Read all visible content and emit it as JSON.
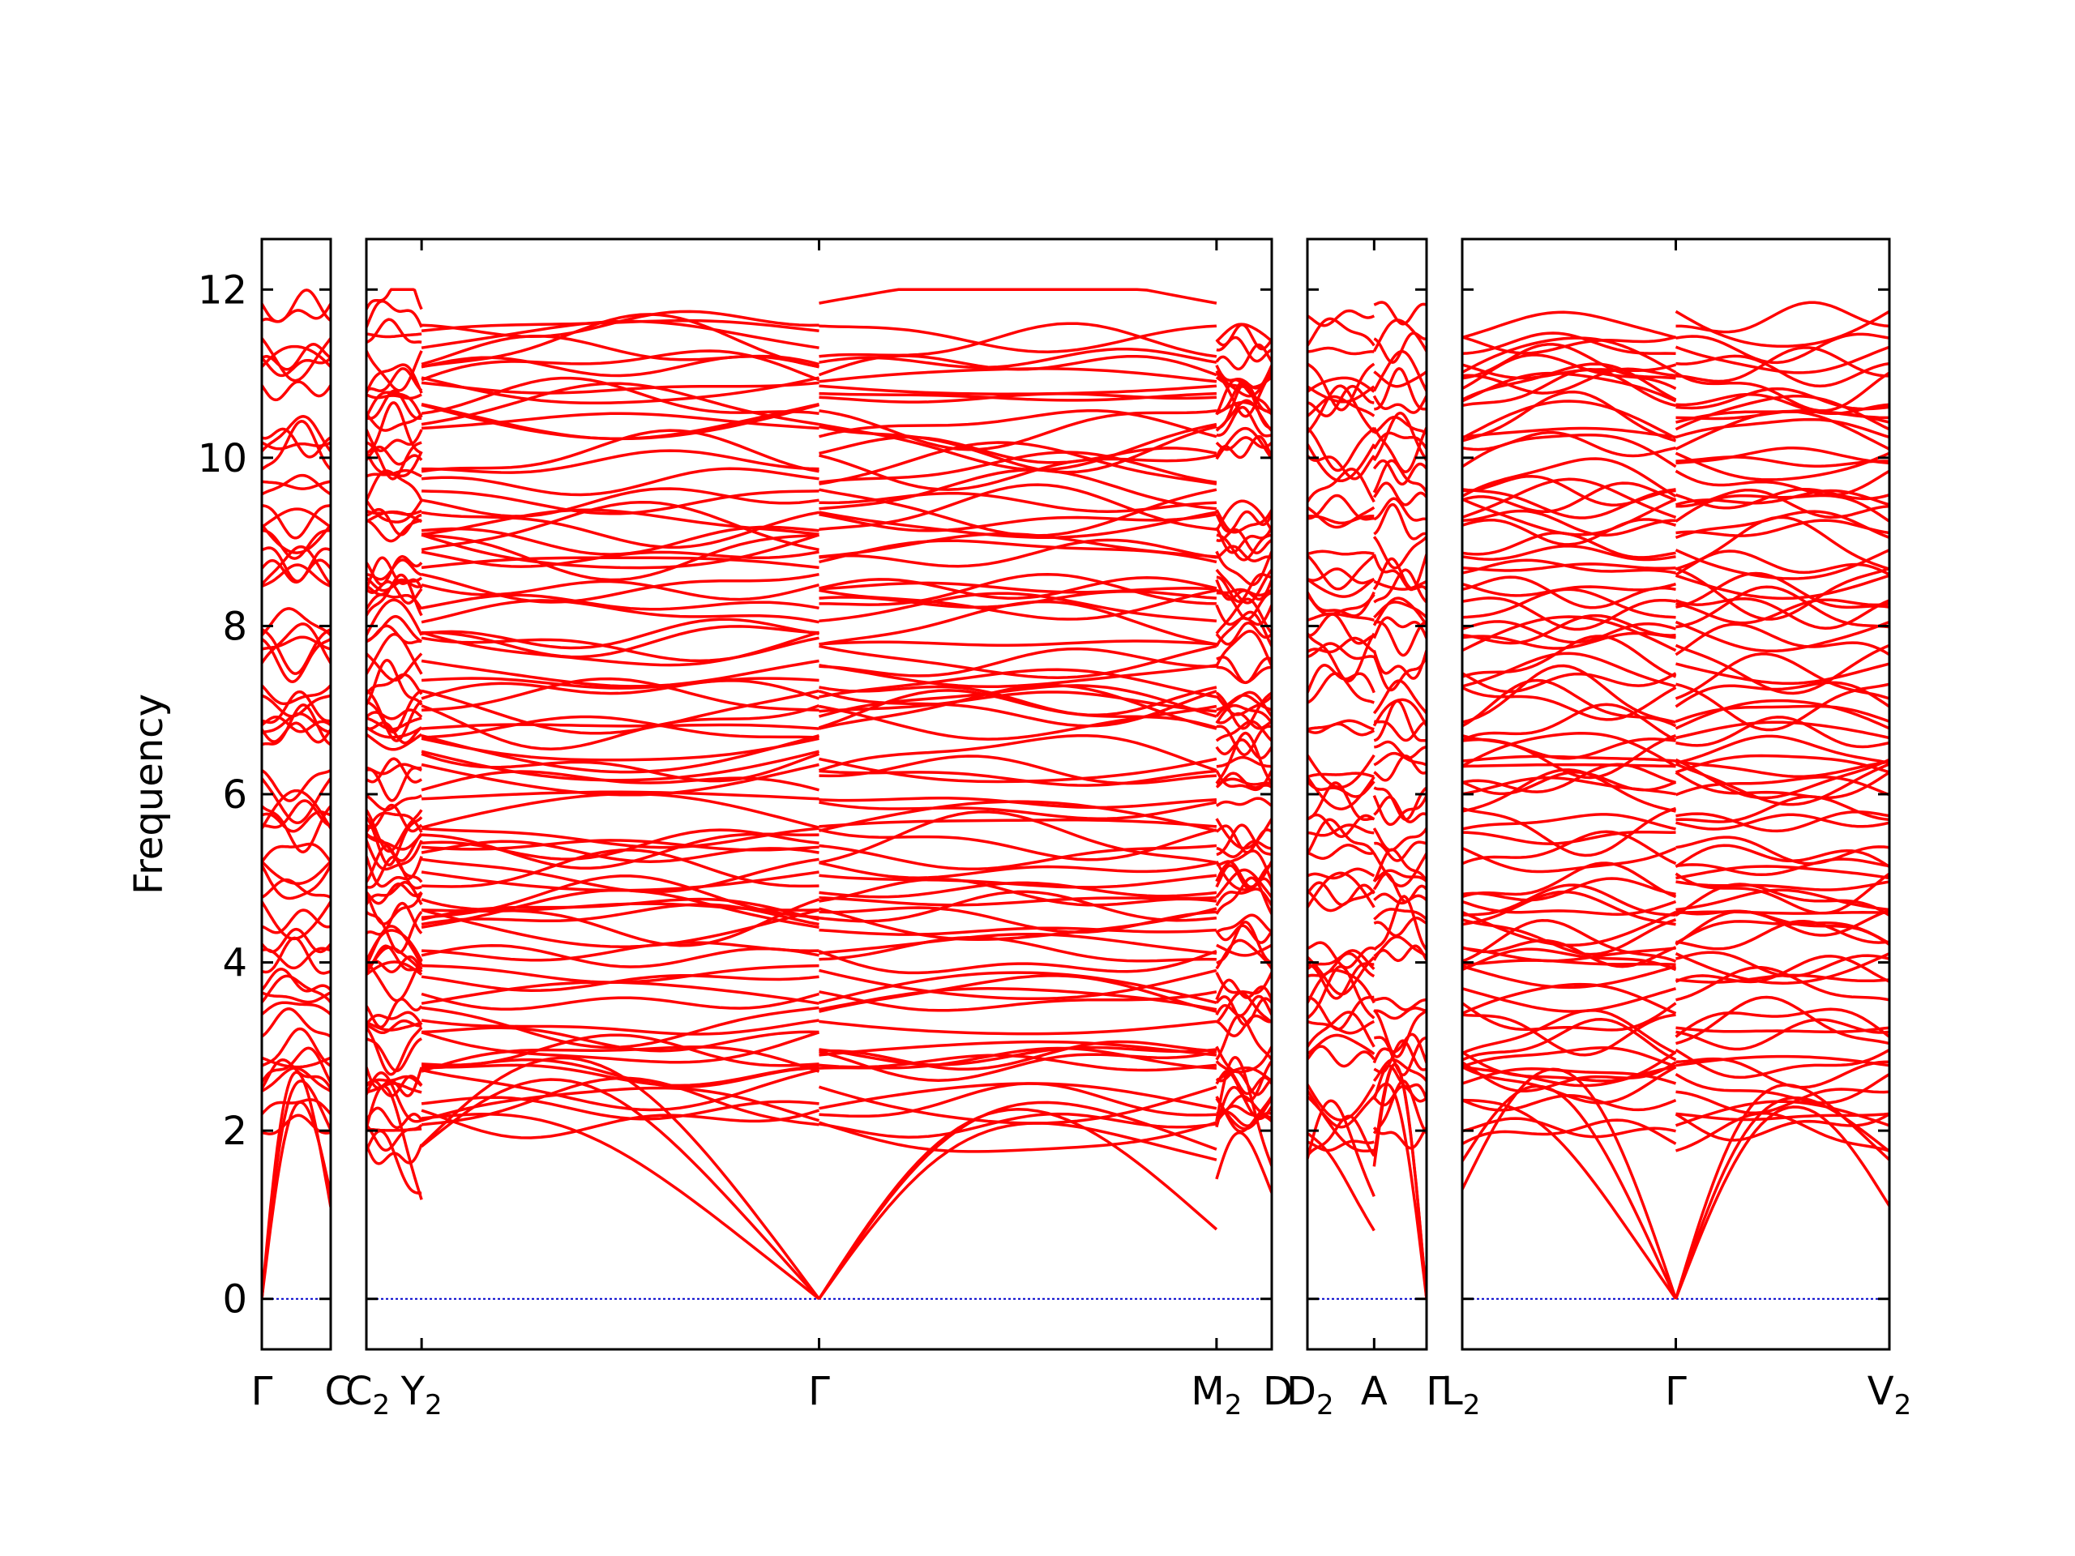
{
  "chart_data": {
    "type": "line",
    "title": "",
    "ylabel": "Frequency",
    "xlabel": "",
    "ylim": [
      -0.6,
      12.6
    ],
    "yticks": [
      0,
      2,
      4,
      6,
      8,
      10,
      12
    ],
    "grid": false,
    "legend": "none",
    "colors": {
      "bands": "#ff0000",
      "zero_line": "#0000cc",
      "axes": "#000000"
    },
    "panels": [
      {
        "segments": [
          {
            "start": "Γ",
            "end": "C"
          }
        ],
        "ticks": [
          {
            "pos": 0.0,
            "label": "Γ"
          },
          {
            "pos": 1.0,
            "label": "C"
          }
        ]
      },
      {
        "segments": [
          {
            "start": "C2",
            "end": "Y2"
          },
          {
            "start": "Y2",
            "end": "Γ"
          },
          {
            "start": "Γ",
            "end": "M2"
          },
          {
            "start": "M2",
            "end": "D"
          }
        ],
        "ticks": [
          {
            "pos": 0.0,
            "label": "C",
            "sub": "2"
          },
          {
            "pos": 0.061,
            "label": "Y",
            "sub": "2"
          },
          {
            "pos": 0.5,
            "label": "Γ"
          },
          {
            "pos": 0.939,
            "label": "M",
            "sub": "2"
          },
          {
            "pos": 1.0,
            "label": "D"
          }
        ]
      },
      {
        "segments": [
          {
            "start": "D2",
            "end": "A"
          },
          {
            "start": "A",
            "end": "Γ"
          }
        ],
        "ticks": [
          {
            "pos": 0.0,
            "label": "D",
            "sub": "2"
          },
          {
            "pos": 0.56,
            "label": "A"
          },
          {
            "pos": 1.0,
            "label": "Γ"
          }
        ]
      },
      {
        "segments": [
          {
            "start": "L2",
            "end": "Γ"
          },
          {
            "start": "Γ",
            "end": "V2"
          }
        ],
        "ticks": [
          {
            "pos": 0.0,
            "label": "L",
            "sub": "2"
          },
          {
            "pos": 0.5,
            "label": "Γ"
          },
          {
            "pos": 1.0,
            "label": "V",
            "sub": "2"
          }
        ]
      }
    ],
    "bands_description": {
      "optical_band_count_approx": 90,
      "frequency_range": [
        0,
        12.0
      ],
      "acoustic_zero_at": [
        "Γ"
      ]
    }
  }
}
